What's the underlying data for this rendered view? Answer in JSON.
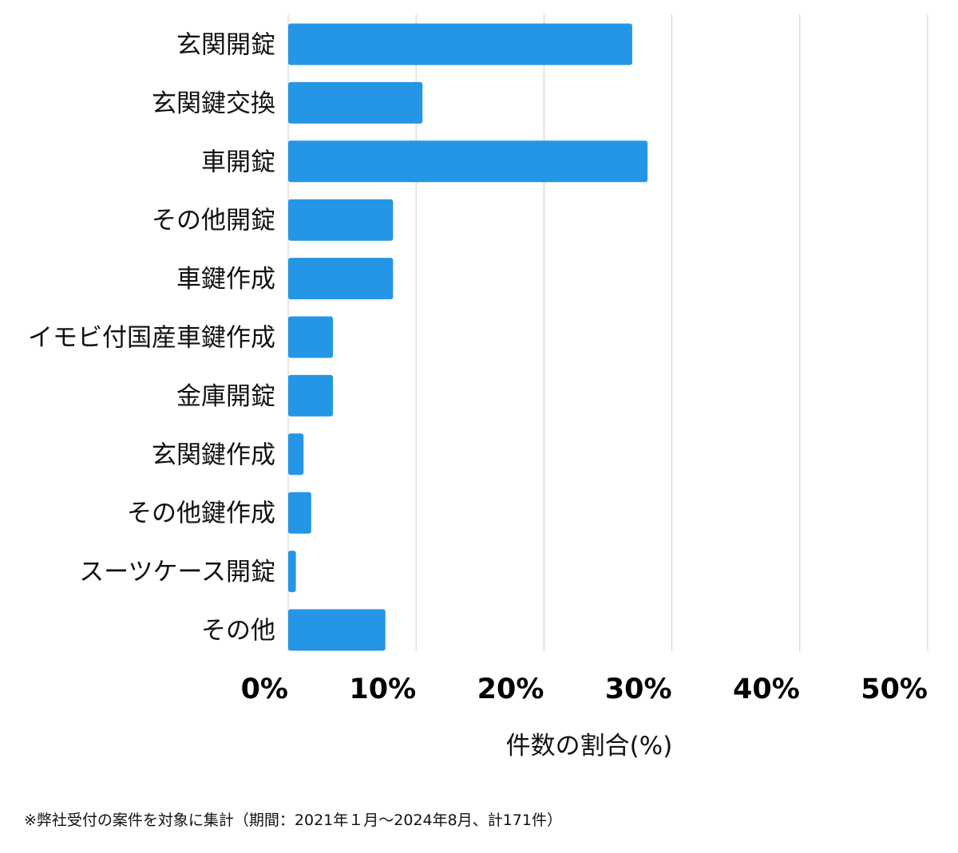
{
  "chart_data": {
    "type": "bar",
    "orientation": "horizontal",
    "categories": [
      "玄関開錠",
      "玄関鍵交換",
      "車開錠",
      "その他開錠",
      "車鍵作成",
      "イモビ付国産車鍵作成",
      "金庫開錠",
      "玄関鍵作成",
      "その他鍵作成",
      "スーツケース開錠",
      "その他"
    ],
    "values": [
      26.9,
      10.5,
      28.1,
      8.2,
      8.2,
      3.5,
      3.5,
      1.2,
      1.8,
      0.6,
      7.6
    ],
    "xlabel": "件数の割合(%)",
    "xlim": [
      0,
      50
    ],
    "xticks": [
      0,
      10,
      20,
      30,
      40,
      50
    ],
    "xtick_labels": [
      "0%",
      "10%",
      "20%",
      "30%",
      "40%",
      "50%"
    ],
    "grid": "vertical",
    "bar_color": "#2596e6",
    "grid_color": "#cccccc"
  },
  "footnote": "※弊社受付の案件を対象に集計（期間：2021年１月〜2024年8月、計171件）"
}
